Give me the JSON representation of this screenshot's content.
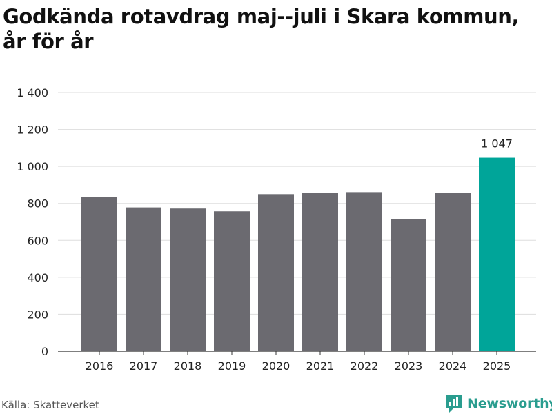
{
  "chart_data": {
    "type": "bar",
    "title": "Godkända rotavdrag maj--juli i Skara kommun, år för år",
    "title_lines": [
      "Godkända rotavdrag maj--juli i Skara kommun,",
      "år för år"
    ],
    "categories": [
      "2016",
      "2017",
      "2018",
      "2019",
      "2020",
      "2021",
      "2022",
      "2023",
      "2024",
      "2025"
    ],
    "values": [
      835,
      778,
      772,
      757,
      850,
      857,
      861,
      716,
      855,
      1047
    ],
    "highlight_index": 9,
    "data_labels": [
      {
        "index": 9,
        "text": "1 047"
      }
    ],
    "ylim": [
      0,
      1400
    ],
    "yticks": [
      0,
      200,
      400,
      600,
      800,
      1000,
      1200,
      1400
    ],
    "ytick_labels": [
      "0",
      "200",
      "400",
      "600",
      "800",
      "1 000",
      "1 200",
      "1 400"
    ],
    "xlabel": "",
    "ylabel": "",
    "grid": true,
    "colors": {
      "bar": "#6b6a70",
      "highlight": "#00a599",
      "grid": "#dddddd",
      "axis": "#333333"
    }
  },
  "footer": {
    "source": "Källa: Skatteverket",
    "brand": "Newsworthy",
    "brand_icon": "newsworthy-logo-icon",
    "brand_color": "#2a9d8f"
  }
}
